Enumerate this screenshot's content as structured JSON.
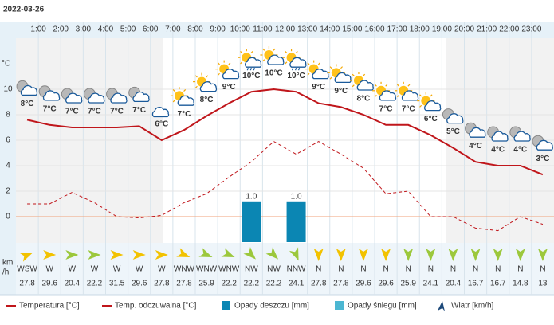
{
  "chart_data": {
    "type": "line",
    "title": "2022-03-26",
    "categories": [
      null,
      "1:00",
      "2:00",
      "3:00",
      "4:00",
      "5:00",
      "6:00",
      "7:00",
      "8:00",
      "9:00",
      "10:00",
      "11:00",
      "12:00",
      "13:00",
      "14:00",
      "15:00",
      "16:00",
      "17:00",
      "18:00",
      "19:00",
      "20:00",
      "21:00",
      "22:00",
      "23:00"
    ],
    "y_label": "°C",
    "ylim": [
      -2,
      14
    ],
    "yticks": [
      0,
      2,
      4,
      6,
      8,
      10
    ],
    "grid": true,
    "y2lim": [
      0,
      5
    ],
    "series": [
      {
        "name": "Temperatura [°C]",
        "color": "#c0161b",
        "values": [
          7.6,
          7.2,
          7.0,
          7.0,
          7.0,
          7.1,
          6.0,
          6.8,
          7.9,
          8.9,
          9.8,
          10.0,
          9.8,
          8.9,
          8.6,
          8.0,
          7.2,
          7.2,
          6.4,
          5.4,
          4.3,
          4.0,
          4.0,
          3.3
        ],
        "value_labels": [
          "8°C",
          "7°C",
          "7°C",
          "7°C",
          "7°C",
          "7°C",
          "6°C",
          "7°C",
          "8°C",
          "9°C",
          "10°C",
          "10°C",
          "10°C",
          "9°C",
          "9°C",
          "8°C",
          "7°C",
          "7°C",
          "6°C",
          "5°C",
          "4°C",
          "4°C",
          "4°C",
          "3°C"
        ]
      },
      {
        "name": "Temp. odczuwalna [°C]",
        "color": "#c0161b",
        "dashed": true,
        "values": [
          1.0,
          1.0,
          1.9,
          1.1,
          0,
          -0.1,
          0.1,
          1.1,
          1.8,
          3.1,
          4.3,
          5.9,
          4.9,
          5.9,
          4.9,
          3.8,
          1.8,
          2.0,
          0,
          0,
          -0.9,
          -1.1,
          0,
          -0.6
        ]
      },
      {
        "name": "Opady deszczu [mm]",
        "type": "bar",
        "axis": "y2",
        "color": "#0b86b3",
        "values": [
          0,
          0,
          0,
          0,
          0,
          0,
          0,
          0,
          0,
          0,
          1.0,
          0,
          1.0,
          0,
          0,
          0,
          0,
          0,
          0,
          0,
          0,
          0,
          0,
          0
        ],
        "value_labels": [
          null,
          null,
          null,
          null,
          null,
          null,
          null,
          null,
          null,
          null,
          "1.0",
          null,
          "1.0",
          null,
          null,
          null,
          null,
          null,
          null,
          null,
          null,
          null,
          null,
          null
        ]
      },
      {
        "name": "Opady śniegu [mm]",
        "type": "bar",
        "axis": "y2",
        "color": "#4cb7d2",
        "values": [
          0,
          0,
          0,
          0,
          0,
          0,
          0,
          0,
          0,
          0,
          0,
          0,
          0,
          0,
          0,
          0,
          0,
          0,
          0,
          0,
          0,
          0,
          0,
          0
        ]
      }
    ],
    "wind": {
      "name": "Wiatr [km/h]",
      "unit_label": [
        "km",
        "/h"
      ],
      "color": "#1e4a7a",
      "directions": [
        "WSW",
        "W",
        "W",
        "W",
        "W",
        "W",
        "W",
        "WNW",
        "WNW",
        "WNW",
        "NW",
        "NW",
        "NNW",
        "N",
        "N",
        "N",
        "N",
        "N",
        "N",
        "N",
        "N",
        "N",
        "N",
        "N"
      ],
      "from_deg": [
        247.5,
        270,
        270,
        270,
        270,
        270,
        270,
        292.5,
        292.5,
        292.5,
        315,
        315,
        337.5,
        0,
        0,
        0,
        0,
        0,
        0,
        0,
        0,
        0,
        0,
        0
      ],
      "values": [
        27.8,
        29.6,
        20.4,
        22.2,
        31.5,
        29.6,
        27.8,
        27.8,
        25.9,
        22.2,
        22.2,
        22.2,
        24.1,
        27.8,
        27.8,
        29.6,
        29.6,
        25.9,
        24.1,
        20.4,
        16.7,
        16.7,
        14.8,
        13
      ],
      "colors": [
        "#f2c200",
        "#f2c200",
        "#9cc83c",
        "#9cc83c",
        "#f2c200",
        "#f2c200",
        "#f2c200",
        "#f2c200",
        "#9cc83c",
        "#9cc83c",
        "#9cc83c",
        "#9cc83c",
        "#9cc83c",
        "#f2c200",
        "#f2c200",
        "#f2c200",
        "#f2c200",
        "#9cc83c",
        "#9cc83c",
        "#9cc83c",
        "#9cc83c",
        "#9cc83c",
        "#9cc83c",
        "#9cc83c"
      ]
    }
  }
}
